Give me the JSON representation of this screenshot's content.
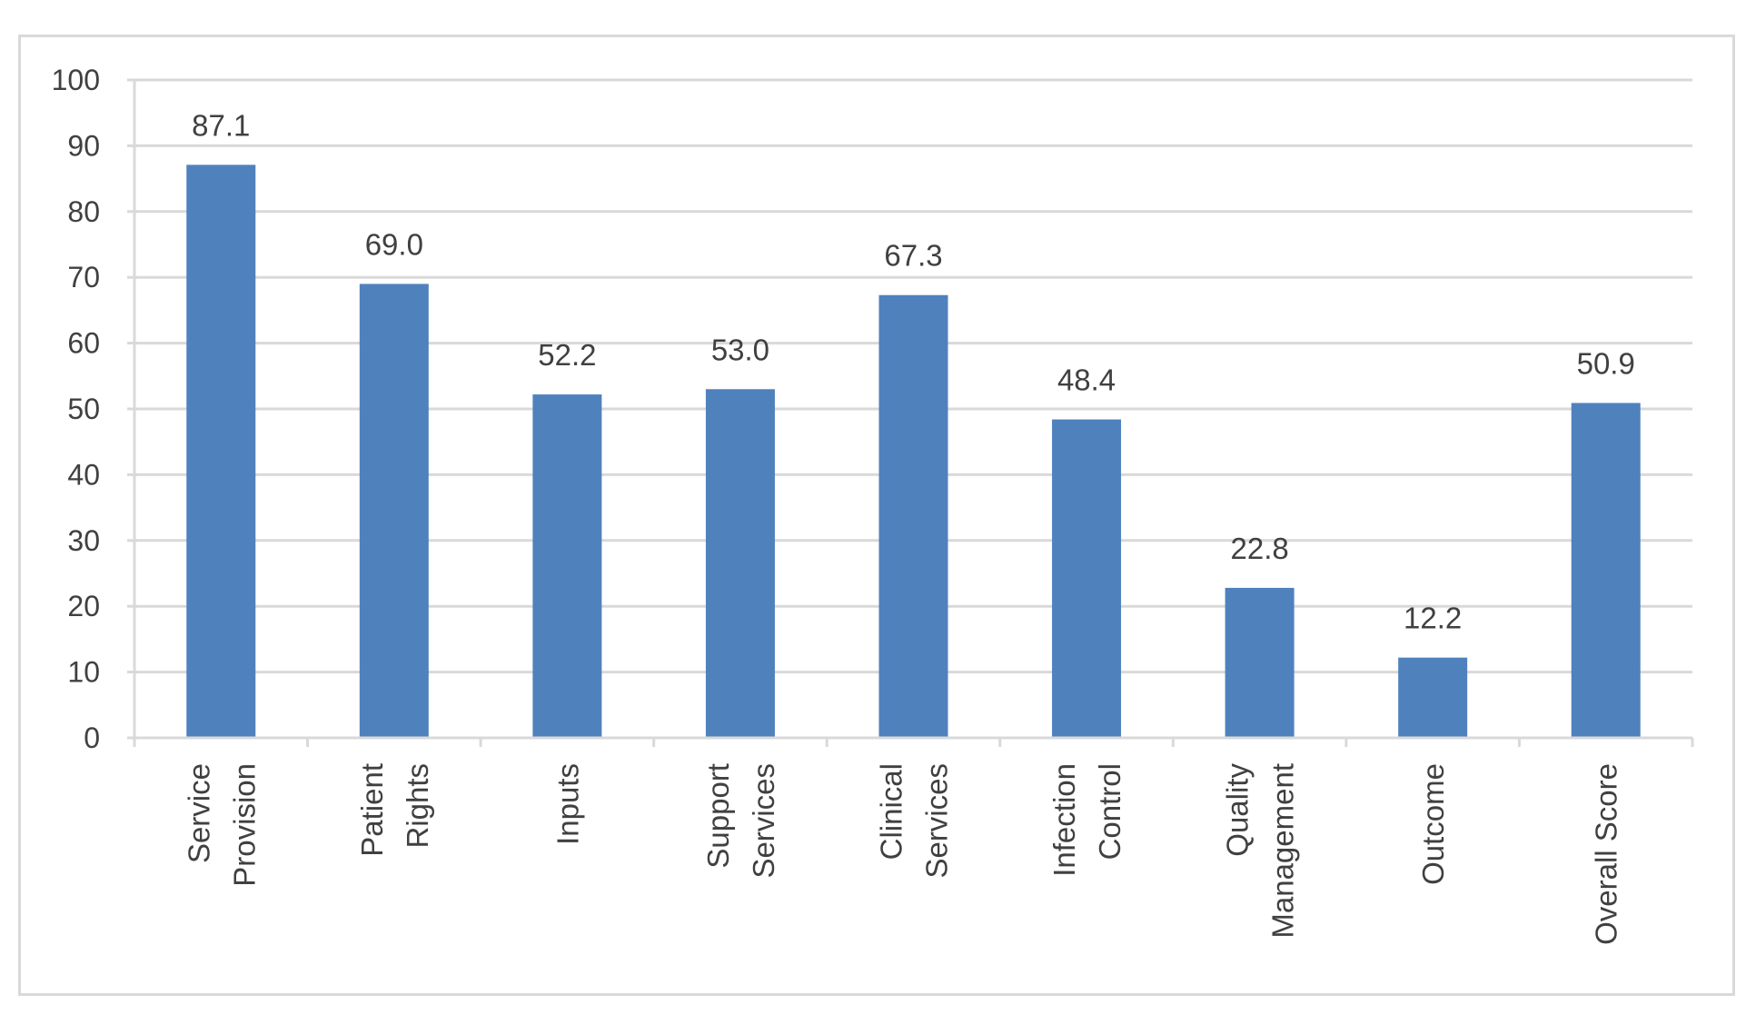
{
  "chart_data": {
    "type": "bar",
    "categories": [
      [
        "Service",
        "Provision"
      ],
      [
        "Patient",
        "Rights"
      ],
      [
        "Inputs"
      ],
      [
        "Support",
        "Services"
      ],
      [
        "Clinical",
        "Services"
      ],
      [
        "Infection",
        "Control"
      ],
      [
        "Quality",
        "Management"
      ],
      [
        "Outcome"
      ],
      [
        "Overall Score"
      ]
    ],
    "values": [
      87.1,
      69.0,
      52.2,
      53.0,
      67.3,
      48.4,
      22.8,
      12.2,
      50.9
    ],
    "data_labels": [
      "87.1",
      "69.0",
      "52.2",
      "53.0",
      "67.3",
      "48.4",
      "22.8",
      "12.2",
      "50.9"
    ],
    "y_ticks": [
      0,
      10,
      20,
      30,
      40,
      50,
      60,
      70,
      80,
      90,
      100
    ],
    "ylim": [
      0,
      100
    ],
    "title": "",
    "xlabel": "",
    "ylabel": "",
    "grid": true,
    "legend": "none",
    "bar_color": "#4f81bd",
    "grid_color": "#d9d9d9",
    "text_color": "#404040"
  }
}
